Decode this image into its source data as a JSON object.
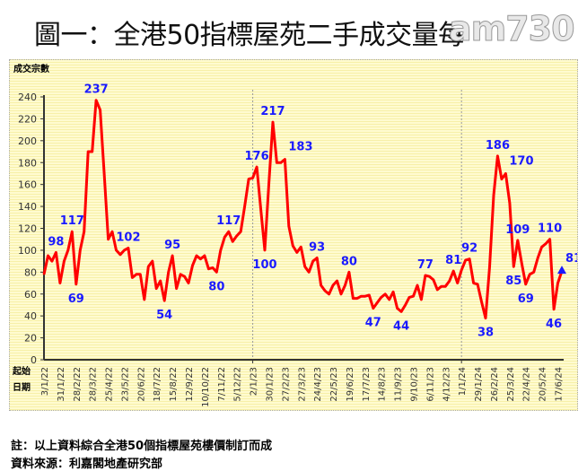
{
  "title": "圖一：全港50指標屋苑二手成交量每",
  "watermark": "am730",
  "notes": {
    "note": "註：以上資料綜合全港50個指標屋苑樓價制訂而成",
    "source": "資料來源：利嘉閣地產研究部"
  },
  "chart_data": {
    "type": "line",
    "title": "圖一：全港50指標屋苑二手成交量每",
    "ylabel": "成交宗數",
    "xlabel": "起始日期",
    "xlabel_lines": [
      "起始",
      "日期"
    ],
    "ylim": [
      0,
      240
    ],
    "yticks": [
      0,
      20,
      40,
      60,
      80,
      100,
      120,
      140,
      160,
      180,
      200,
      220,
      240
    ],
    "grid": false,
    "line_color": "#ff0000",
    "label_color": "#1a1aff",
    "x_tick_labels": [
      "3/1/22",
      "31/1/22",
      "28/2/22",
      "28/3/22",
      "25/4/22",
      "23/5/22",
      "20/6/22",
      "18/7/22",
      "15/8/22",
      "12/9/22",
      "10/10/22",
      "7/11/22",
      "5/12/22",
      "2/1/23",
      "30/1/23",
      "27/2/23",
      "27/3/23",
      "24/4/23",
      "22/5/23",
      "19/6/23",
      "17/7/23",
      "14/8/23",
      "11/9/23",
      "9/10/23",
      "6/11/23",
      "4/12/23",
      "1/1/24",
      "29/1/24",
      "26/2/24",
      "25/3/24",
      "22/4/24",
      "20/5/24",
      "17/6/24"
    ],
    "x_tick_every_weeks": 4,
    "year_dividers_at_week": [
      52,
      104
    ],
    "values": [
      78,
      95,
      90,
      98,
      70,
      90,
      100,
      117,
      69,
      100,
      117,
      190,
      190,
      237,
      228,
      170,
      110,
      117,
      100,
      96,
      100,
      102,
      75,
      78,
      78,
      55,
      85,
      90,
      65,
      72,
      54,
      80,
      95,
      65,
      78,
      76,
      70,
      86,
      95,
      92,
      95,
      83,
      84,
      80,
      100,
      112,
      117,
      108,
      113,
      117,
      140,
      165,
      166,
      176,
      138,
      100,
      160,
      217,
      180,
      180,
      183,
      122,
      104,
      98,
      103,
      85,
      80,
      90,
      93,
      68,
      63,
      60,
      68,
      72,
      60,
      68,
      80,
      56,
      56,
      58,
      58,
      59,
      47,
      52,
      57,
      60,
      55,
      62,
      47,
      44,
      50,
      57,
      58,
      68,
      55,
      77,
      76,
      73,
      64,
      67,
      67,
      72,
      81,
      70,
      82,
      91,
      92,
      70,
      69,
      53,
      38,
      85,
      150,
      186,
      165,
      170,
      143,
      85,
      109,
      88,
      69,
      78,
      80,
      93,
      103,
      106,
      110,
      46,
      70,
      81
    ],
    "annotations": [
      {
        "week": 3,
        "text": "98",
        "pos": "above"
      },
      {
        "week": 7,
        "text": "117",
        "pos": "above"
      },
      {
        "week": 8,
        "text": "69",
        "pos": "below"
      },
      {
        "week": 13,
        "text": "237",
        "pos": "above"
      },
      {
        "week": 21,
        "text": "102",
        "pos": "above"
      },
      {
        "week": 30,
        "text": "54",
        "pos": "below"
      },
      {
        "week": 32,
        "text": "95",
        "pos": "above"
      },
      {
        "week": 43,
        "text": "80",
        "pos": "below"
      },
      {
        "week": 46,
        "text": "117",
        "pos": "above"
      },
      {
        "week": 53,
        "text": "176",
        "pos": "above"
      },
      {
        "week": 55,
        "text": "100",
        "pos": "below"
      },
      {
        "week": 57,
        "text": "217",
        "pos": "above"
      },
      {
        "week": 60,
        "text": "183",
        "pos": "aboveright"
      },
      {
        "week": 68,
        "text": "93",
        "pos": "above"
      },
      {
        "week": 76,
        "text": "80",
        "pos": "above"
      },
      {
        "week": 82,
        "text": "47",
        "pos": "below"
      },
      {
        "week": 89,
        "text": "44",
        "pos": "below"
      },
      {
        "week": 95,
        "text": "77",
        "pos": "above"
      },
      {
        "week": 102,
        "text": "81",
        "pos": "above"
      },
      {
        "week": 106,
        "text": "92",
        "pos": "above"
      },
      {
        "week": 110,
        "text": "38",
        "pos": "below"
      },
      {
        "week": 113,
        "text": "186",
        "pos": "above"
      },
      {
        "week": 115,
        "text": "170",
        "pos": "aboveright"
      },
      {
        "week": 117,
        "text": "85",
        "pos": "below"
      },
      {
        "week": 118,
        "text": "109",
        "pos": "above"
      },
      {
        "week": 120,
        "text": "69",
        "pos": "below"
      },
      {
        "week": 126,
        "text": "110",
        "pos": "above"
      },
      {
        "week": 127,
        "text": "46",
        "pos": "below"
      },
      {
        "week": 129,
        "text": "81",
        "pos": "aboveright"
      }
    ],
    "last_point_marker": "triangle"
  }
}
